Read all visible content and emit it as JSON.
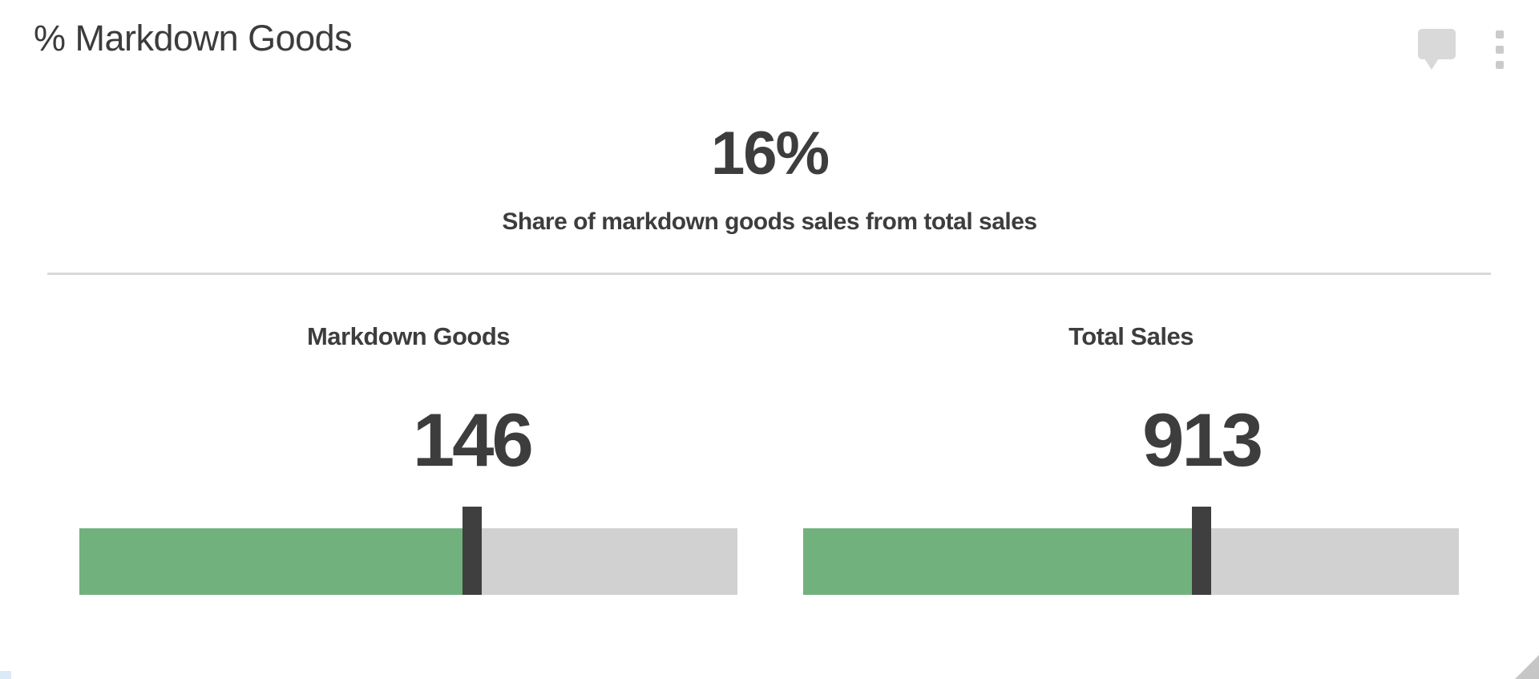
{
  "card": {
    "title": "% Markdown Goods",
    "icons": {
      "comment": "speech-bubble-icon",
      "menu": "kebab-vertical-icon"
    }
  },
  "kpi": {
    "value": "16%",
    "subtitle": "Share of markdown goods sales from total sales"
  },
  "metrics": [
    {
      "label": "Markdown Goods",
      "value": "146"
    },
    {
      "label": "Total Sales",
      "value": "913"
    }
  ],
  "chart_data": {
    "type": "bullet",
    "title": "% Markdown Goods",
    "kpi": {
      "value": 16,
      "unit": "%",
      "label": "Share of markdown goods sales from total sales"
    },
    "series": [
      {
        "name": "Markdown Goods",
        "value": 146,
        "fill_fraction": 0.582,
        "marker_at_fill_end": true
      },
      {
        "name": "Total Sales",
        "value": 913,
        "fill_fraction": 0.593,
        "marker_at_fill_end": true
      }
    ],
    "legend": "none",
    "grid": false,
    "colors": {
      "fill": "#71b17d",
      "track": "#d1d1d1",
      "marker": "#3f3f3f",
      "text": "#3d3d3d",
      "divider": "#d9d9d9"
    }
  }
}
